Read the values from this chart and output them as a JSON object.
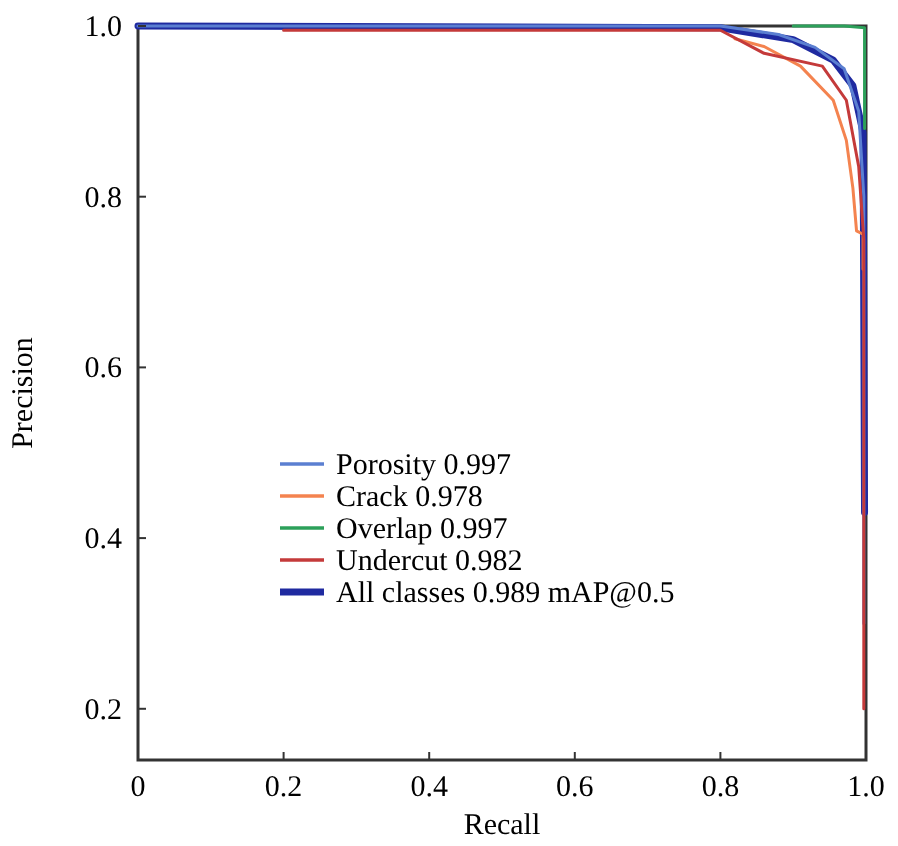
{
  "chart_data": {
    "type": "line",
    "xlabel": "Recall",
    "ylabel": "Precision",
    "xlim": [
      0,
      1
    ],
    "ylim": [
      0.14,
      1
    ],
    "xticks": [
      0,
      0.2,
      0.4,
      0.6,
      0.8,
      {
        "value": 1,
        "label": "1.0"
      }
    ],
    "yticks": [
      0.2,
      0.4,
      0.6,
      0.8,
      {
        "value": 1,
        "label": "1.0"
      }
    ],
    "grid": false,
    "legend": "bottom",
    "marker": "none",
    "line_style": "solid",
    "series": [
      {
        "name": "Porosity 0.997",
        "color": "#5b7fd1",
        "x": [
          0,
          0.8,
          0.88,
          0.93,
          0.97,
          0.99,
          0.997,
          0.997
        ],
        "values": [
          1,
          1,
          0.99,
          0.975,
          0.95,
          0.9,
          0.8,
          0.3
        ]
      },
      {
        "name": "Crack 0.978",
        "color": "#f4834f",
        "x": [
          0.82,
          0.86,
          0.91,
          0.955,
          0.973,
          0.982,
          0.987,
          0.996,
          0.996
        ],
        "values": [
          0.985,
          0.976,
          0.953,
          0.913,
          0.866,
          0.81,
          0.76,
          0.756,
          0.715
        ]
      },
      {
        "name": "Overlap 0.997",
        "color": "#2ca05a",
        "x": [
          0.9,
          0.97,
          0.998,
          0.998
        ],
        "values": [
          1,
          1,
          0.998,
          0.88
        ]
      },
      {
        "name": "Undercut 0.982",
        "color": "#c43a3a",
        "x": [
          0.2,
          0.8,
          0.86,
          0.94,
          0.973,
          0.99,
          0.997,
          0.997
        ],
        "values": [
          0.995,
          0.995,
          0.968,
          0.953,
          0.913,
          0.835,
          0.75,
          0.2
        ]
      },
      {
        "name": "All classes 0.989 mAP@0.5",
        "color": "#1f2aa0",
        "x": [
          0,
          0.8,
          0.9,
          0.955,
          0.982,
          0.996,
          0.998
        ],
        "values": [
          1,
          0.998,
          0.984,
          0.96,
          0.93,
          0.875,
          0.43
        ]
      }
    ]
  }
}
